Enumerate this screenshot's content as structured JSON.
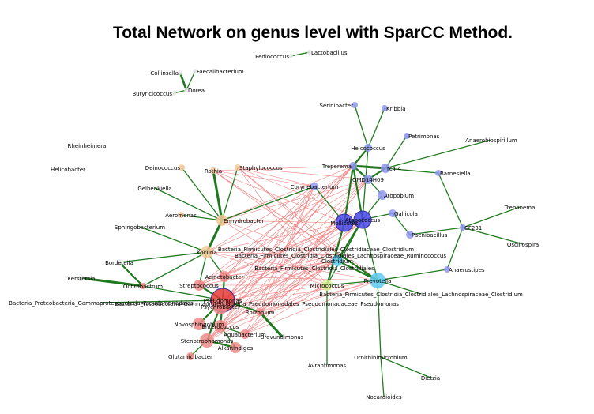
{
  "title": "Total Network on genus level with SparCC Method.",
  "colors": {
    "positive_edge": "#1f7a1f",
    "negative_edge": "#f08080",
    "cluster_blue": "#8f96ee",
    "cluster_blue_dark": "#4a46e6",
    "cluster_cyan": "#5ec8f0",
    "cluster_red": "#f08a8a",
    "cluster_red_dark": "#e83a3a",
    "cluster_orange": "#f6c99a",
    "cluster_yellow": "#d7ee90",
    "isolated": "#e6e6e6"
  },
  "nodes": [
    {
      "id": "Pediococcus",
      "label": "Pediococcus",
      "group": "isolated"
    },
    {
      "id": "Lactobacillus",
      "label": "Lactobacillus",
      "group": "isolated"
    },
    {
      "id": "Collinsella",
      "label": "Collinsella",
      "group": "isolated"
    },
    {
      "id": "Faecalibacterium",
      "label": "Faecalibacterium",
      "group": "isolated"
    },
    {
      "id": "Butyricicoccus",
      "label": "Butyricicoccus",
      "group": "isolated"
    },
    {
      "id": "Dorea",
      "label": "Dorea",
      "group": "isolated"
    },
    {
      "id": "Rheinheimera",
      "label": "Rheinheimera",
      "group": "isolated"
    },
    {
      "id": "Helicobacter",
      "label": "Helicobacter",
      "group": "isolated"
    },
    {
      "id": "Serinibacter",
      "label": "Serinibacter",
      "group": "blue"
    },
    {
      "id": "Kribbia",
      "label": "Kribbia",
      "group": "blue"
    },
    {
      "id": "Petrimonas",
      "label": "Petrimonas",
      "group": "blue"
    },
    {
      "id": "Anaerobiospirillum",
      "label": "Anaerobiospirillum",
      "group": "blue"
    },
    {
      "id": "Helcococcus",
      "label": "Helcococcus",
      "group": "blue"
    },
    {
      "id": "Treperema",
      "label": "Treperema",
      "group": "blue"
    },
    {
      "id": "rc4_4",
      "label": "rc4-4",
      "group": "blue"
    },
    {
      "id": "GMD14H09",
      "label": "GMD14H09",
      "group": "blue"
    },
    {
      "id": "Barnesiella",
      "label": "Barnesiella",
      "group": "blue"
    },
    {
      "id": "Deinococcus",
      "label": "Deinococcus",
      "group": "orange"
    },
    {
      "id": "Rothia",
      "label": "Rothia",
      "group": "orange"
    },
    {
      "id": "Staphylococcus",
      "label": "Staphylococcus",
      "group": "orange"
    },
    {
      "id": "Corynebacterium",
      "label": "Corynebacterium",
      "group": "blue"
    },
    {
      "id": "Gelbenkiella",
      "label": "Gelbenkiella",
      "group": "orange"
    },
    {
      "id": "Atopobium",
      "label": "Atopobium",
      "group": "blue"
    },
    {
      "id": "Treponema",
      "label": "Treponema",
      "group": "blue"
    },
    {
      "id": "Aeromonas",
      "label": "Aeromonas",
      "group": "orange"
    },
    {
      "id": "Enhydrobacter",
      "label": "Enhydrobacter",
      "group": "orange"
    },
    {
      "id": "Atopococcus",
      "label": "Atopococcus",
      "group": "blue_dark"
    },
    {
      "id": "Gallicola",
      "label": "Gallicola",
      "group": "blue"
    },
    {
      "id": "Mollicutes",
      "label": "Mollicutes",
      "group": "blue_dark"
    },
    {
      "id": "Paenibacillus",
      "label": "Paenibacillus",
      "group": "blue"
    },
    {
      "id": "CF231",
      "label": "CF231",
      "group": "blue"
    },
    {
      "id": "Sphingobacterium",
      "label": "Sphingobacterium",
      "group": "orange"
    },
    {
      "id": "Oscillospira",
      "label": "Oscillospira",
      "group": "blue"
    },
    {
      "id": "Kocuria",
      "label": "Kocuria",
      "group": "orange"
    },
    {
      "id": "Bact_Firm_Clos_Ruminococcus",
      "label": "Bacteria_Firmicutes_Clostridia_Clostridiales_Lachnospiraceae_Ruminococcus",
      "group": "cyan"
    },
    {
      "id": "Bact_Firm_Clos_Clostridium",
      "label": "Bacteria_Firmicutes_Clostridia_Clostridiales_Clostridiaceae_Clostridium",
      "group": "cyan"
    },
    {
      "id": "Bordetella",
      "label": "Bordetella",
      "group": "isolated"
    },
    {
      "id": "Bact_Firm_Clos_Bacteria",
      "label": "Bacteria_Firmicutes_Clostridia_Clostridiales",
      "group": "cyan"
    },
    {
      "id": "Anaerostipes",
      "label": "Anaerostipes",
      "group": "blue"
    },
    {
      "id": "Clostridium",
      "label": "Clostridium",
      "group": "cyan"
    },
    {
      "id": "Acinetobacter",
      "label": "Acinetobacter",
      "group": "red"
    },
    {
      "id": "Kerstersia",
      "label": "Kerstersia",
      "group": "isolated"
    },
    {
      "id": "Ochrobactrum",
      "label": "Ochrobactrum",
      "group": "red"
    },
    {
      "id": "Streptococcus",
      "label": "Streptococcus",
      "group": "red"
    },
    {
      "id": "Micrococcus",
      "label": "Micrococcus",
      "group": "yellow"
    },
    {
      "id": "Prevotella",
      "label": "Prevotella",
      "group": "cyan"
    },
    {
      "id": "Pseudomonas_big",
      "label": "Pseudomonas",
      "group": "red_dark"
    },
    {
      "id": "Bact_Firm_Clos_Lachno_Clostridium",
      "label": "Bacteria_Firmicutes_Clostridia_Clostridiales_Lachnospiraceae_Clostridium",
      "group": "cyan"
    },
    {
      "id": "Bact_Proteo_Gamma_Pseudomonadales",
      "label": "Bacteria_Proteobacteria_Gammaproteobacteria_Pseudomonadales",
      "group": "red"
    },
    {
      "id": "Psychrobacter",
      "label": "Psychrobacter",
      "group": "red"
    },
    {
      "id": "Bact_Proteo_Pseudomonas",
      "label": "Bacteria_Proteobacteria_Gammaproteobacteria_Pseudomonadales_Pseudomonadaceae_Pseudomonas",
      "group": "red"
    },
    {
      "id": "Rhizobium",
      "label": "Rhizobium",
      "group": "red"
    },
    {
      "id": "Novosphingobium",
      "label": "Novosphingobium",
      "group": "red"
    },
    {
      "id": "Enterococcus",
      "label": "Enterococcus",
      "group": "red"
    },
    {
      "id": "Brevundimonas",
      "label": "Brevundimonas",
      "group": "red"
    },
    {
      "id": "Aquabacterium",
      "label": "Aquabacterium",
      "group": "red"
    },
    {
      "id": "Stenotrophomonas",
      "label": "Stenotrophomonas",
      "group": "red"
    },
    {
      "id": "Alkanindiges",
      "label": "Alkanindiges",
      "group": "red"
    },
    {
      "id": "Glutamicibacter",
      "label": "Glutamicibacter",
      "group": "red"
    },
    {
      "id": "Ornithinimicrobium",
      "label": "Ornithinimicrobium",
      "group": "blue"
    },
    {
      "id": "Avrantimonas",
      "label": "Avrantimonas",
      "group": "red"
    },
    {
      "id": "Dietzia",
      "label": "Dietzia",
      "group": "blue"
    },
    {
      "id": "Nocardioides",
      "label": "Nocardioides",
      "group": "blue"
    }
  ]
}
